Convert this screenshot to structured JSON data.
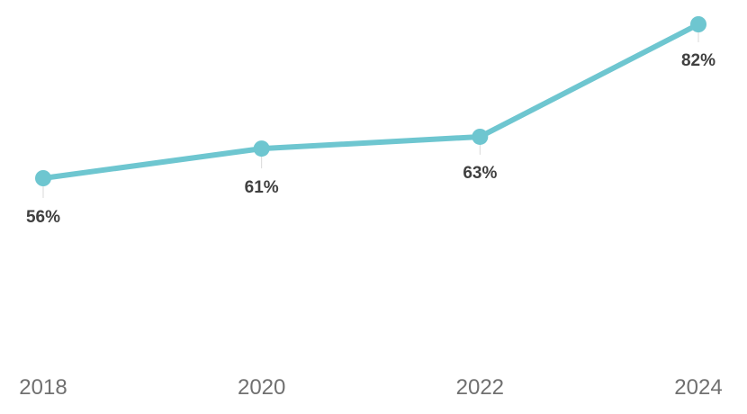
{
  "chart_data": {
    "type": "line",
    "categories": [
      "2018",
      "2020",
      "2022",
      "2024"
    ],
    "series": [
      {
        "values": [
          56,
          61,
          63,
          82
        ],
        "data_labels": [
          "56%",
          "61%",
          "63%",
          "82%"
        ],
        "color": "#6ec6d0"
      }
    ],
    "title": "",
    "xlabel": "",
    "ylabel": "",
    "y_unit": "%",
    "grid": false,
    "legend": "none",
    "label_color": "#404040",
    "tick_color": "#707070"
  }
}
